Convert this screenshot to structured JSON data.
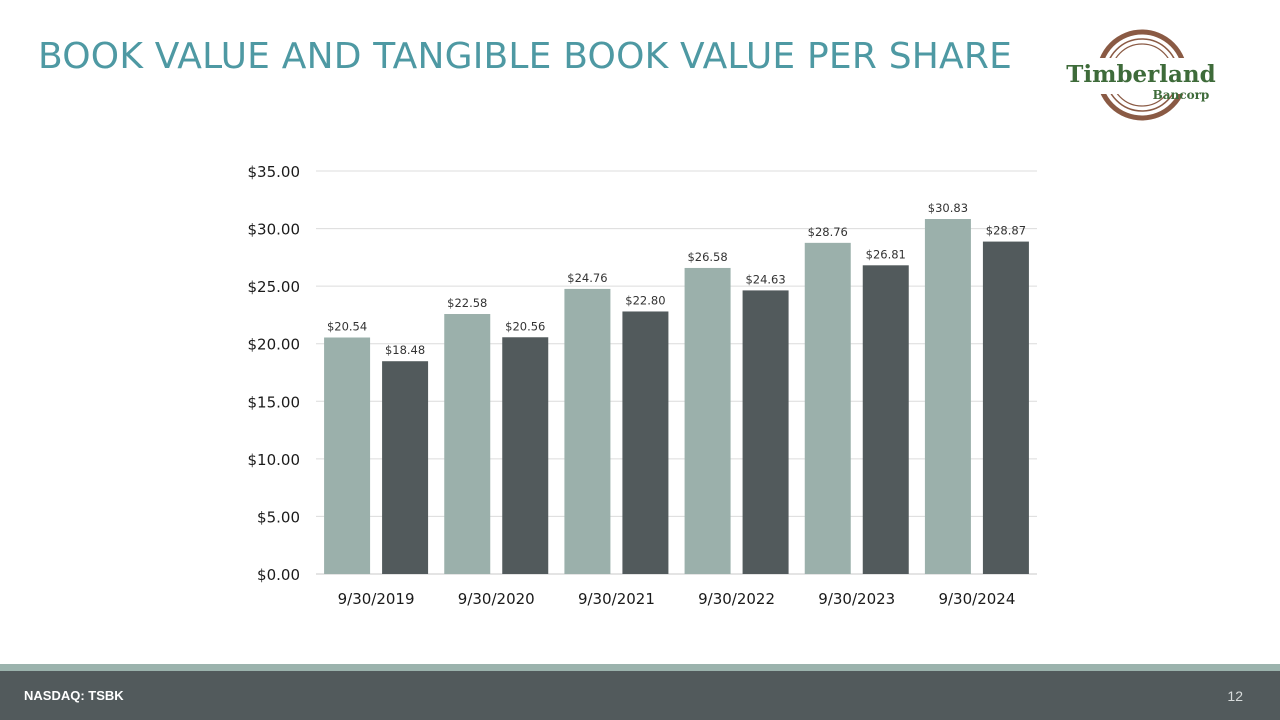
{
  "slide": {
    "title": "BOOK VALUE AND TANGIBLE BOOK VALUE PER SHARE",
    "title_color": "#4e99a3",
    "page_number": "12"
  },
  "logo": {
    "name": "Timberland",
    "subname": "Bancorp",
    "name_color": "#3e6b3a",
    "ring_color": "#8a5a44"
  },
  "footer": {
    "ticker": "NASDAQ: TSBK",
    "bar_color": "#525a5c",
    "stripe_color": "#9bb3ad"
  },
  "chart_data": {
    "type": "bar",
    "categories": [
      "9/30/2019",
      "9/30/2020",
      "9/30/2021",
      "9/30/2022",
      "9/30/2023",
      "9/30/2024"
    ],
    "series": [
      {
        "values": [
          20.54,
          22.58,
          24.76,
          26.58,
          28.76,
          30.83
        ],
        "color": "#9bb0ab",
        "labels": [
          "$20.54",
          "$22.58",
          "$24.76",
          "$26.58",
          "$28.76",
          "$30.83"
        ]
      },
      {
        "values": [
          18.48,
          20.56,
          22.8,
          24.63,
          26.81,
          28.87
        ],
        "color": "#525a5c",
        "labels": [
          "$18.48",
          "$20.56",
          "$22.80",
          "$24.63",
          "$26.81",
          "$28.87"
        ]
      }
    ],
    "ylim": [
      0,
      35
    ],
    "yticks": [
      0,
      5,
      10,
      15,
      20,
      25,
      30,
      35
    ],
    "ytick_labels": [
      "$0.00",
      "$5.00",
      "$10.00",
      "$15.00",
      "$20.00",
      "$25.00",
      "$30.00",
      "$35.00"
    ],
    "grid": true,
    "legend": "none"
  }
}
